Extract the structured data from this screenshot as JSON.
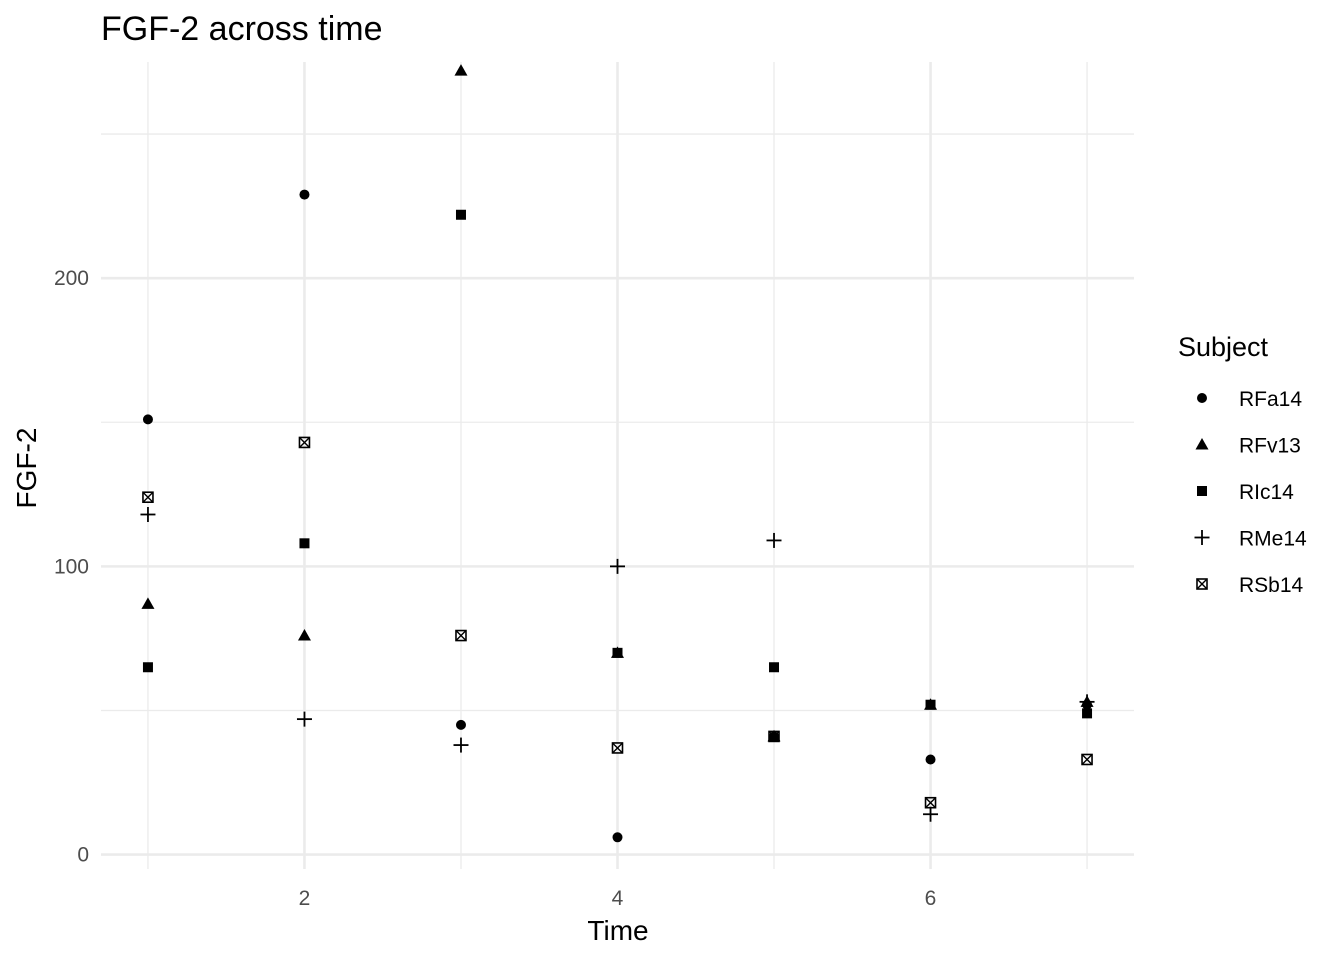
{
  "chart_data": {
    "type": "scatter",
    "title": "FGF-2 across time",
    "xlabel": "Time",
    "ylabel": "FGF-2",
    "xlim": [
      0.7,
      7.3
    ],
    "ylim": [
      -5,
      275
    ],
    "x_ticks": [
      2,
      4,
      6
    ],
    "y_ticks": [
      0,
      100,
      200
    ],
    "grid": true,
    "legend": {
      "title": "Subject",
      "position": "right"
    },
    "series": [
      {
        "name": "RFa14",
        "shape": "circle",
        "points": [
          [
            1,
            151
          ],
          [
            2,
            229
          ],
          [
            3,
            45
          ],
          [
            4,
            6
          ],
          [
            5,
            41
          ],
          [
            6,
            33
          ],
          [
            7,
            52
          ]
        ]
      },
      {
        "name": "RFv13",
        "shape": "triangle",
        "points": [
          [
            1,
            87
          ],
          [
            2,
            76
          ],
          [
            3,
            272
          ],
          [
            4,
            70
          ],
          [
            5,
            41
          ],
          [
            6,
            52
          ],
          [
            7,
            53
          ]
        ]
      },
      {
        "name": "RIc14",
        "shape": "square",
        "points": [
          [
            1,
            65
          ],
          [
            2,
            108
          ],
          [
            3,
            222
          ],
          [
            4,
            70
          ],
          [
            5,
            65
          ],
          [
            6,
            52
          ],
          [
            7,
            49
          ]
        ]
      },
      {
        "name": "RMe14",
        "shape": "plus",
        "points": [
          [
            1,
            118
          ],
          [
            2,
            47
          ],
          [
            3,
            38
          ],
          [
            4,
            100
          ],
          [
            5,
            109
          ],
          [
            6,
            14
          ],
          [
            7,
            53
          ]
        ]
      },
      {
        "name": "RSb14",
        "shape": "square-cross",
        "points": [
          [
            1,
            124
          ],
          [
            2,
            143
          ],
          [
            3,
            76
          ],
          [
            4,
            37
          ],
          [
            5,
            41
          ],
          [
            6,
            18
          ],
          [
            7,
            33
          ]
        ]
      }
    ]
  }
}
